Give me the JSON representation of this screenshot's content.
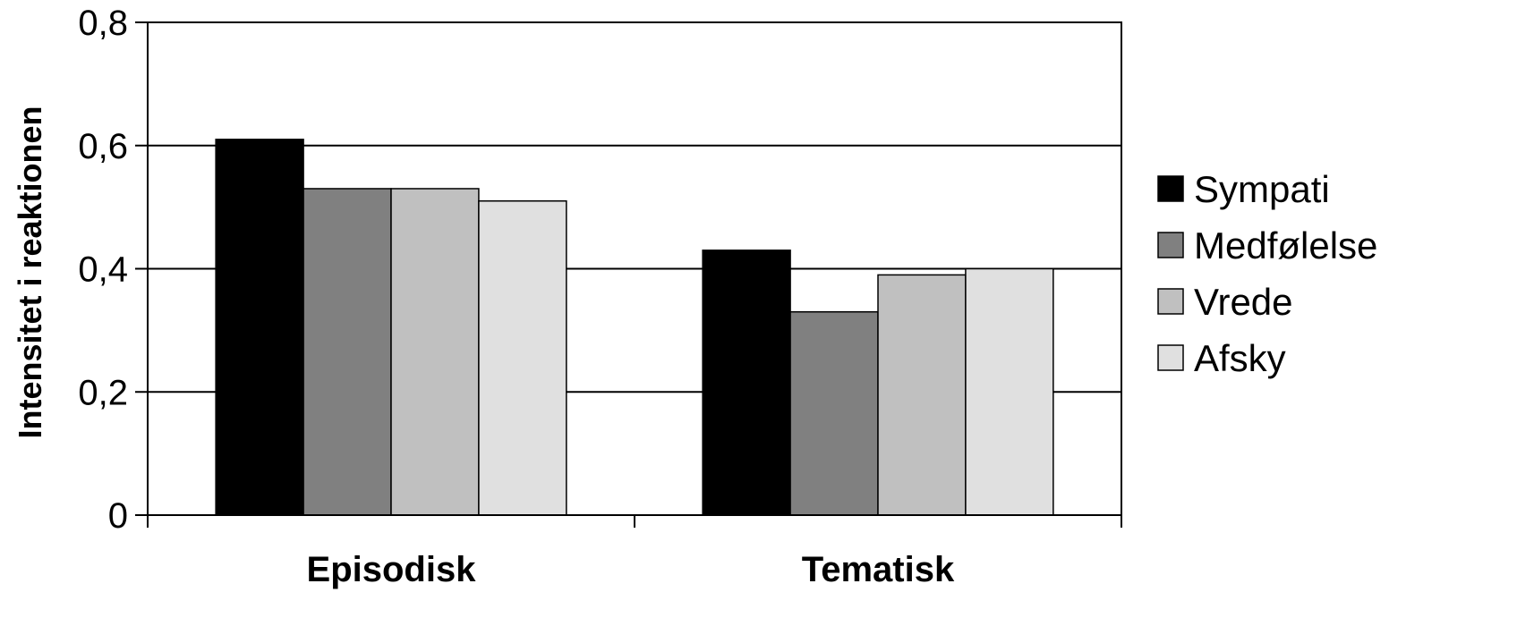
{
  "chart_data": {
    "type": "bar",
    "title": "",
    "xlabel": "",
    "ylabel": "Intensitet i reaktionen",
    "categories": [
      "Episodisk",
      "Tematisk"
    ],
    "series": [
      {
        "name": "Sympati",
        "values": [
          0.61,
          0.43
        ],
        "color": "#000000"
      },
      {
        "name": "Medfølelse",
        "values": [
          0.53,
          0.33
        ],
        "color": "#808080"
      },
      {
        "name": "Vrede",
        "values": [
          0.53,
          0.39
        ],
        "color": "#c0c0c0"
      },
      {
        "name": "Afsky",
        "values": [
          0.51,
          0.4
        ],
        "color": "#e0e0e0"
      }
    ],
    "ylim": [
      0,
      0.8
    ],
    "yticks": [
      0,
      0.2,
      0.4,
      0.6,
      0.8
    ],
    "ytick_labels": [
      "0",
      "0,2",
      "0,4",
      "0,6",
      "0,8"
    ],
    "grid": true,
    "legend_position": "right"
  }
}
